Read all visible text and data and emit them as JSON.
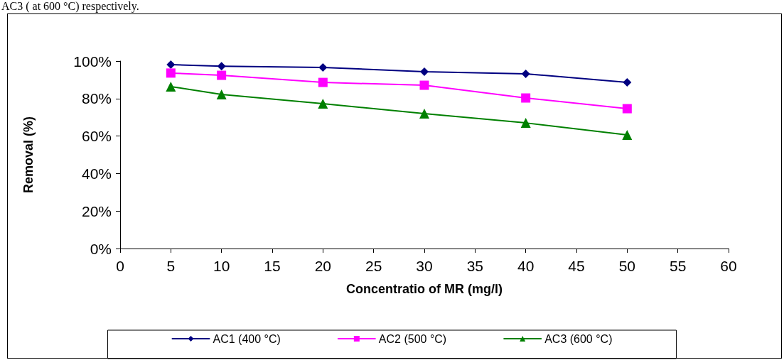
{
  "chart_data": {
    "type": "line",
    "xlabel": "Concentratio of MR (mg/l)",
    "ylabel": "Removal (%)",
    "annotations": [
      "AC3 ( at 600 °C) respectively."
    ],
    "x": [
      5,
      10,
      20,
      30,
      40,
      50
    ],
    "series": [
      {
        "name": "AC1 (400 °C)",
        "color": "#000080",
        "marker": "diamond",
        "values": [
          98.1,
          97.3,
          96.6,
          94.3,
          93.2,
          88.6
        ]
      },
      {
        "name": "AC2 (500 °C)",
        "color": "#ff00ff",
        "marker": "square",
        "values": [
          93.6,
          92.4,
          88.6,
          87.1,
          80.3,
          74.6
        ]
      },
      {
        "name": "AC3 (600 °C)",
        "color": "#008000",
        "marker": "triangle",
        "values": [
          86.4,
          82.2,
          77.3,
          72.0,
          67.0,
          60.6
        ]
      }
    ],
    "xlim": [
      0,
      60
    ],
    "xticks": [
      0,
      5,
      10,
      15,
      20,
      25,
      30,
      35,
      40,
      45,
      50,
      55,
      60
    ],
    "ylim": [
      0,
      100
    ],
    "yticks": [
      {
        "value": 0,
        "label": "0%"
      },
      {
        "value": 20,
        "label": "20%"
      },
      {
        "value": 40,
        "label": "40%"
      },
      {
        "value": 60,
        "label": "60%"
      },
      {
        "value": 80,
        "label": "80%"
      },
      {
        "value": 100,
        "label": "100%"
      }
    ],
    "grid": false,
    "legend": "bottom",
    "line_style": "solid"
  }
}
